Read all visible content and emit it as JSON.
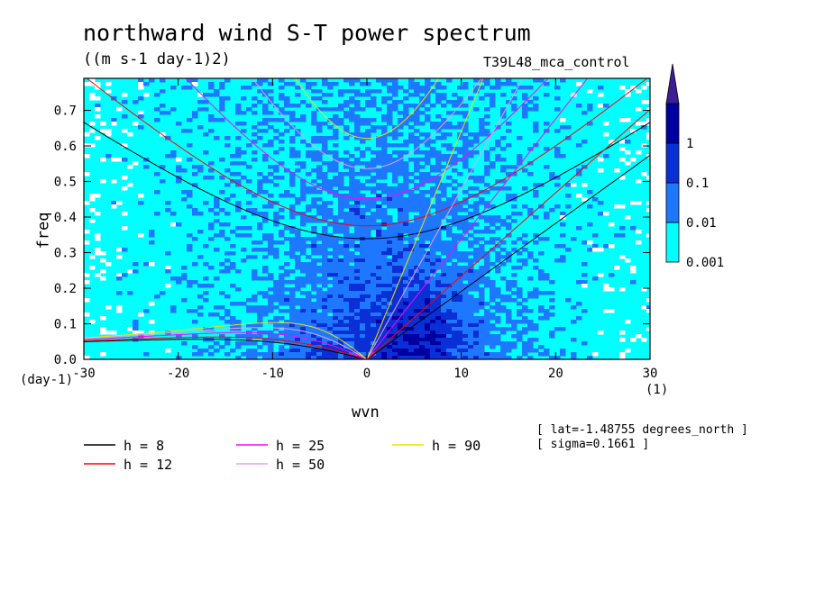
{
  "title": "northward wind S-T power spectrum",
  "units": "((m s-1 day-1)2)",
  "run_label": "T39L48_mca_control",
  "info": [
    "[ lat=-1.48755 degrees_north ]",
    "[ sigma=0.1661 ]"
  ],
  "chart_data": {
    "type": "heatmap",
    "xlabel": "wvn",
    "ylabel": "freq",
    "x_unit": "(1)",
    "y_unit": "(day-1)",
    "xlim": [
      -30,
      30
    ],
    "ylim": [
      0,
      0.79
    ],
    "xticks": [
      "-30",
      "-20",
      "-10",
      "0",
      "10",
      "20",
      "30"
    ],
    "xtick_values": [
      -30,
      -20,
      -10,
      0,
      10,
      20,
      30
    ],
    "yticks": [
      "0.0",
      "0.1",
      "0.2",
      "0.3",
      "0.4",
      "0.5",
      "0.6",
      "0.7"
    ],
    "ytick_values": [
      0,
      0.1,
      0.2,
      0.3,
      0.4,
      0.5,
      0.6,
      0.7
    ],
    "colorbar": {
      "levels": [
        "0.001",
        "0.01",
        "0.1",
        "1"
      ],
      "colors": [
        "#00ffff",
        "#1e78ff",
        "#0a2fd6",
        "#0000a0",
        "#3c1e96"
      ]
    },
    "dispersion_curves": [
      {
        "name": "h = 8",
        "h": 8,
        "color": "#000000"
      },
      {
        "name": "h = 12",
        "h": 12,
        "color": "#ff0000"
      },
      {
        "name": "h = 25",
        "h": 25,
        "color": "#ff00ff"
      },
      {
        "name": "h = 50",
        "h": 50,
        "color": "#e89ee8"
      },
      {
        "name": "h = 90",
        "h": 90,
        "color": "#f0e000"
      }
    ]
  }
}
